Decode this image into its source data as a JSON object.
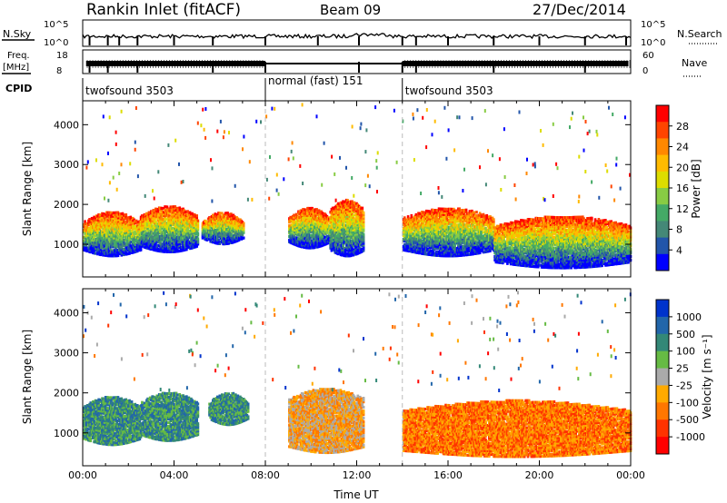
{
  "header": {
    "station": "Rankin Inlet (fitACF)",
    "beam": "Beam 09",
    "date": "27/Dec/2014"
  },
  "summary": {
    "nsky_label": "N.Sky",
    "nsky_ticks": [
      "10^5",
      "10^0"
    ],
    "nsearch_label": "N.Search",
    "nsearch_ticks": [
      "10^5",
      "10^0"
    ],
    "freq_label_line1": "Freq.",
    "freq_label_line2": "[MHz]",
    "freq_ticks": [
      "18",
      "8"
    ],
    "nave_label": "Nave",
    "nave_ticks": [
      "60",
      "0"
    ],
    "cpid_label": "CPID",
    "cpid_segments": [
      {
        "name": "twofsound 3503",
        "start_hour": 0,
        "end_hour": 8
      },
      {
        "name": "normal (fast) 151",
        "start_hour": 8,
        "end_hour": 14
      },
      {
        "name": "twofsound 3503",
        "start_hour": 14,
        "end_hour": 24
      }
    ]
  },
  "chart_data": [
    {
      "type": "heatmap",
      "name": "power",
      "ylabel": "Slant Range [km]",
      "xlabel": "",
      "xlim": [
        0,
        24
      ],
      "ylim": [
        180,
        4600
      ],
      "yticks": [
        "1000",
        "2000",
        "3000",
        "4000"
      ],
      "colorbar_label": "Power [dB]",
      "colorbar_ticks": [
        "28",
        "24",
        "20",
        "16",
        "12",
        "8",
        "4"
      ],
      "colorbar_colors": [
        "#ff0000",
        "#ff4400",
        "#ff8800",
        "#ffbb00",
        "#dddd00",
        "#88cc44",
        "#44aa66",
        "#448877",
        "#2255aa",
        "#0000ff"
      ],
      "regions": [
        {
          "start_hour": 0.0,
          "end_hour": 2.5,
          "low_km": 700,
          "high_km": 1800
        },
        {
          "start_hour": 2.5,
          "end_hour": 5.0,
          "low_km": 800,
          "high_km": 1950
        },
        {
          "start_hour": 5.2,
          "end_hour": 7.0,
          "low_km": 1000,
          "high_km": 1800
        },
        {
          "start_hour": 9.0,
          "end_hour": 10.8,
          "low_km": 900,
          "high_km": 1900
        },
        {
          "start_hour": 10.8,
          "end_hour": 12.3,
          "low_km": 700,
          "high_km": 2100
        },
        {
          "start_hour": 14.0,
          "end_hour": 18.0,
          "low_km": 700,
          "high_km": 1900
        },
        {
          "start_hour": 18.0,
          "end_hour": 24.0,
          "low_km": 400,
          "high_km": 1700
        }
      ]
    },
    {
      "type": "heatmap",
      "name": "velocity",
      "ylabel": "Slant Range [km]",
      "xlabel": "Time UT",
      "xlim": [
        0,
        24
      ],
      "ylim": [
        180,
        4600
      ],
      "xticks": [
        "00:00",
        "04:00",
        "08:00",
        "12:00",
        "16:00",
        "20:00",
        "00:00"
      ],
      "yticks": [
        "1000",
        "2000",
        "3000",
        "4000"
      ],
      "colorbar_label": "Velocity [m s⁻¹]",
      "colorbar_ticks": [
        "1000",
        "500",
        "100",
        "25",
        "-25",
        "-100",
        "-500",
        "-1000"
      ],
      "colorbar_colors": [
        "#0033cc",
        "#2266aa",
        "#338877",
        "#66bb44",
        "#aaaaaa",
        "#ffaa00",
        "#ff7700",
        "#ff3300",
        "#ff0000"
      ],
      "regions": [
        {
          "start_hour": 0.0,
          "end_hour": 2.5,
          "low_km": 700,
          "high_km": 1900
        },
        {
          "start_hour": 2.5,
          "end_hour": 5.0,
          "low_km": 800,
          "high_km": 2000
        },
        {
          "start_hour": 5.5,
          "end_hour": 7.2,
          "low_km": 1200,
          "high_km": 2000
        },
        {
          "start_hour": 9.0,
          "end_hour": 12.3,
          "low_km": 500,
          "high_km": 2100
        },
        {
          "start_hour": 14.0,
          "end_hour": 24.0,
          "low_km": 400,
          "high_km": 1800
        }
      ]
    }
  ]
}
